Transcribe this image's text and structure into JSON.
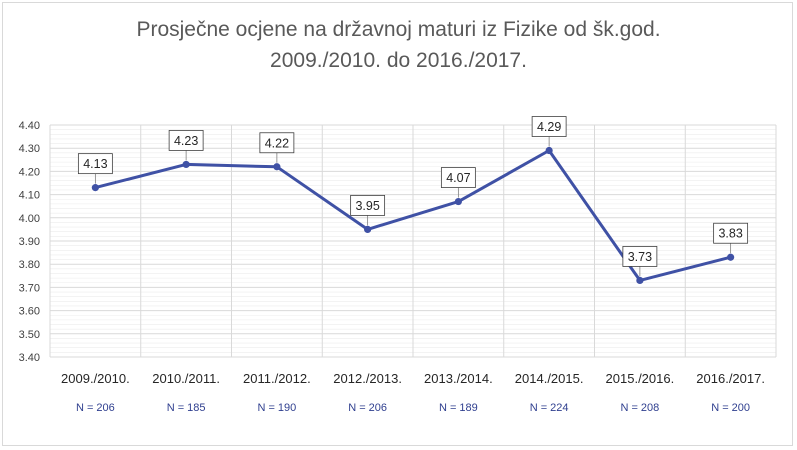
{
  "chart_data": {
    "type": "line",
    "title": "Prosječne ocjene na državnoj maturi iz Fizike od šk.god.",
    "subtitle": "2009./2010. do 2016./2017.",
    "categories": [
      "2009./2010.",
      "2010./2011.",
      "2011./2012.",
      "2012./2013.",
      "2013./2014.",
      "2014./2015.",
      "2015./2016.",
      "2016./2017."
    ],
    "values": [
      4.13,
      4.23,
      4.22,
      3.95,
      4.07,
      4.29,
      3.73,
      3.83
    ],
    "data_labels": [
      "4.13",
      "4.23",
      "4.22",
      "3.95",
      "4.07",
      "4.29",
      "3.73",
      "3.83"
    ],
    "sample_sizes": [
      "N = 206",
      "N = 185",
      "N = 190",
      "N = 206",
      "N = 189",
      "N = 224",
      "N = 208",
      "N = 200"
    ],
    "y_ticks": [
      "3.40",
      "3.50",
      "3.60",
      "3.70",
      "3.80",
      "3.90",
      "4.00",
      "4.10",
      "4.20",
      "4.30",
      "4.40"
    ],
    "ylim": [
      3.4,
      4.4
    ],
    "xlabel": "",
    "ylabel": "",
    "grid": true,
    "line_color": "#3f51a5",
    "grid_color": "#d9d9d9",
    "minor_grid_color": "#ececec"
  }
}
